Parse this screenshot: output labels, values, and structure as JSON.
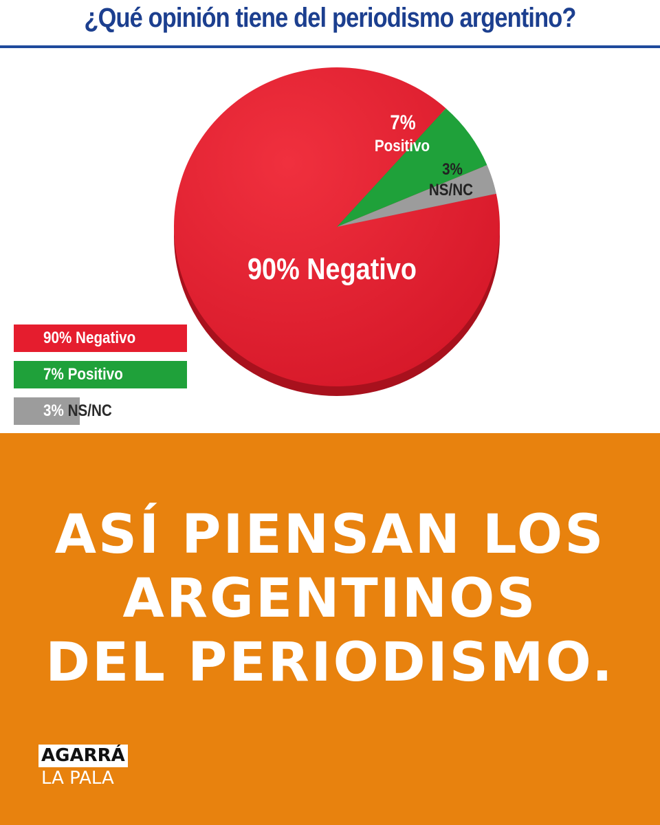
{
  "header": {
    "title": "¿Qué opinión tiene del periodismo argentino?"
  },
  "chart_data": {
    "type": "pie",
    "title": "¿Qué opinión tiene del periodismo argentino?",
    "slices": [
      {
        "label": "Negativo",
        "value": 90,
        "pct_label": "90%",
        "color": "#e51d2e"
      },
      {
        "label": "Positivo",
        "value": 7,
        "pct_label": "7%",
        "color": "#1fa13a"
      },
      {
        "label": "NS/NC",
        "value": 3,
        "pct_label": "3%",
        "color": "#9c9c9c"
      }
    ],
    "slice_labels": {
      "negativo": "90% Negativo",
      "positivo_pct": "7%",
      "positivo_lbl": "Positivo",
      "nsnc_pct": "3%",
      "nsnc_lbl": "NS/NC"
    },
    "legend": [
      {
        "pct": "90%",
        "label": "Negativo",
        "value": 90,
        "color": "#e51d2e"
      },
      {
        "pct": "7%",
        "label": "Positivo",
        "value": 7,
        "color": "#1fa13a"
      },
      {
        "pct": "3%",
        "label": "NS/NC",
        "value": 3,
        "color": "#9c9c9c"
      }
    ]
  },
  "headline": {
    "line1": "ASÍ PIENSAN LOS",
    "line2": "ARGENTINOS",
    "line3": "DEL PERIODISMO."
  },
  "logo": {
    "line1": "AGARRÁ",
    "line2": "LA PALA"
  },
  "colors": {
    "brand_orange": "#e8820e",
    "header_blue": "#1c3f8f"
  }
}
